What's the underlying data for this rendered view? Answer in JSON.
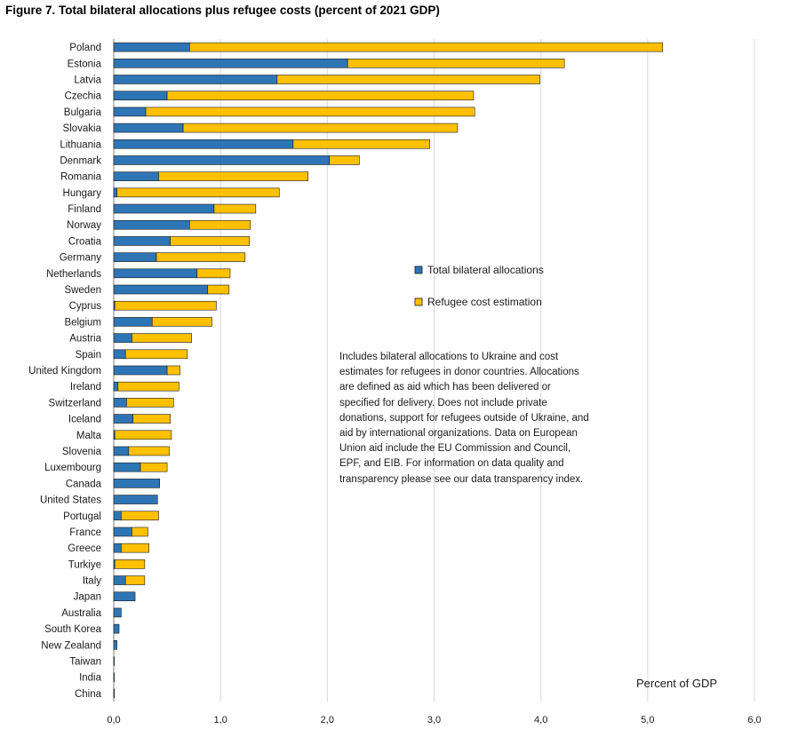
{
  "title": "Figure 7. Total bilateral allocations plus refugee costs (percent of 2021 GDP)",
  "note": "Includes bilateral allocations to Ukraine and cost estimates for refugees in donor countries. Allocations are defined as aid which has been delivered or specified for delivery. Does not include private donations, support for refugees outside of Ukraine, and aid by international organizations. Data on European Union aid include the EU Commission and Council, EPF, and EIB. For information on data quality and transparency please see our data transparency index.",
  "colors": {
    "allocations": "#2e75b6",
    "refugee": "#ffc000",
    "stroke": "#1a1a1a",
    "grid": "#d9d9d9"
  },
  "chart_data": {
    "type": "bar",
    "orientation": "horizontal",
    "stacked": true,
    "xlabel": "Percent of GDP",
    "xlim": [
      0,
      6
    ],
    "xticks": [
      "0,0",
      "1,0",
      "2,0",
      "3,0",
      "4,0",
      "5,0",
      "6,0"
    ],
    "grid": true,
    "legend_position": "right-middle",
    "categories": [
      "Poland",
      "Estonia",
      "Latvia",
      "Czechia",
      "Bulgaria",
      "Slovakia",
      "Lithuania",
      "Denmark",
      "Romania",
      "Hungary",
      "Finland",
      "Norway",
      "Croatia",
      "Germany",
      "Netherlands",
      "Sweden",
      "Cyprus",
      "Belgium",
      "Austria",
      "Spain",
      "United Kingdom",
      "Ireland",
      "Switzerland",
      "Iceland",
      "Malta",
      "Slovenia",
      "Luxembourg",
      "Canada",
      "United States",
      "Portugal",
      "France",
      "Greece",
      "Turkiye",
      "Italy",
      "Japan",
      "Australia",
      "South Korea",
      "New Zealand",
      "Taiwan",
      "India",
      "China"
    ],
    "series": [
      {
        "name": "Total bilateral allocations",
        "values": [
          0.71,
          2.19,
          1.53,
          0.5,
          0.3,
          0.65,
          1.68,
          2.02,
          0.42,
          0.03,
          0.94,
          0.71,
          0.53,
          0.4,
          0.78,
          0.88,
          0.01,
          0.36,
          0.17,
          0.11,
          0.5,
          0.04,
          0.12,
          0.18,
          0.01,
          0.14,
          0.25,
          0.43,
          0.41,
          0.07,
          0.17,
          0.07,
          0.01,
          0.11,
          0.2,
          0.07,
          0.05,
          0.03,
          0.005,
          0.005,
          0.002
        ]
      },
      {
        "name": "Refugee cost estimation",
        "values": [
          4.43,
          2.03,
          2.46,
          2.87,
          3.08,
          2.57,
          1.28,
          0.28,
          1.4,
          1.52,
          0.39,
          0.57,
          0.74,
          0.83,
          0.31,
          0.2,
          0.95,
          0.56,
          0.56,
          0.58,
          0.12,
          0.57,
          0.44,
          0.35,
          0.53,
          0.38,
          0.25,
          0.0,
          0.0,
          0.35,
          0.15,
          0.26,
          0.28,
          0.18,
          0.0,
          0.0,
          0.0,
          0.0,
          0.0,
          0.0,
          0.0
        ]
      }
    ]
  }
}
